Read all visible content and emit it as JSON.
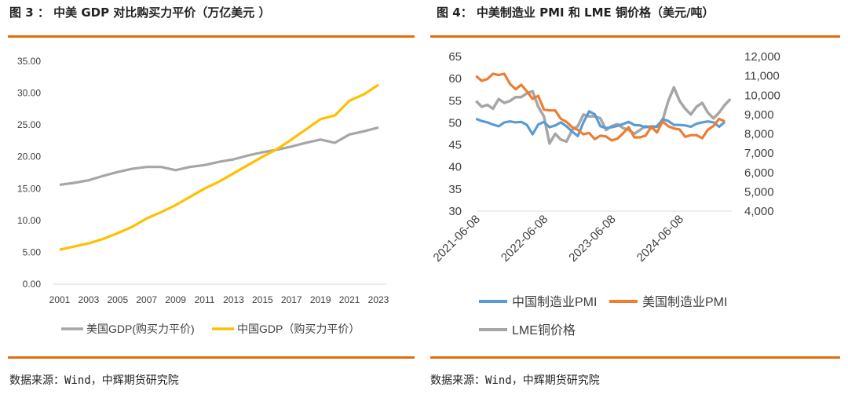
{
  "left": {
    "title": "图 3 ： 中美 GDP 对比购买力平价（万亿美元 ）",
    "source": "数据来源：Wind，中辉期货研究院"
  },
  "right": {
    "title": "图 4： 中美制造业 PMI 和 LME 铜价格（美元/吨）",
    "source": "数据来源：Wind，中辉期货研究院"
  },
  "colors": {
    "accent": "#E46C0A",
    "gray": "#A6A6A6",
    "yellow": "#FFC000",
    "blue": "#5B9BD5",
    "orange": "#ED7D31"
  },
  "chart_data": [
    {
      "type": "line",
      "title": "",
      "x": [
        2001,
        2002,
        2003,
        2004,
        2005,
        2006,
        2007,
        2008,
        2009,
        2010,
        2011,
        2012,
        2013,
        2014,
        2015,
        2016,
        2017,
        2018,
        2019,
        2020,
        2021,
        2022,
        2023
      ],
      "xticks": [
        "2001",
        "2003",
        "2005",
        "2007",
        "2009",
        "2011",
        "2013",
        "2015",
        "2017",
        "2019",
        "2021",
        "2023"
      ],
      "yticks": [
        "0.00",
        "5.00",
        "10.00",
        "15.00",
        "20.00",
        "25.00",
        "30.00",
        "35.00"
      ],
      "ylim": [
        0,
        35
      ],
      "grid": false,
      "legend": "bottom",
      "series": [
        {
          "name": "美国GDP(购买力平价)",
          "color": "#A6A6A6",
          "values": [
            15.6,
            15.9,
            16.3,
            17.0,
            17.6,
            18.1,
            18.4,
            18.4,
            17.9,
            18.4,
            18.7,
            19.2,
            19.6,
            20.2,
            20.7,
            21.1,
            21.6,
            22.2,
            22.7,
            22.2,
            23.5,
            24.0,
            24.6
          ]
        },
        {
          "name": "中国GDP（购买力平价）",
          "color": "#FFC000",
          "values": [
            5.4,
            5.9,
            6.4,
            7.1,
            8.0,
            9.0,
            10.3,
            11.3,
            12.4,
            13.7,
            15.0,
            16.1,
            17.4,
            18.7,
            20.0,
            21.2,
            22.7,
            24.3,
            25.9,
            26.5,
            28.8,
            29.8,
            31.3
          ]
        }
      ]
    },
    {
      "type": "line",
      "title": "",
      "xticks": [
        "2021-06-08",
        "2022-06-08",
        "2023-06-08",
        "2024-06-08"
      ],
      "x_start": "2021-06-08",
      "x_end": "2025-03-08",
      "y_left_ticks": [
        "30",
        "35",
        "40",
        "45",
        "50",
        "55",
        "60",
        "65"
      ],
      "ylim_left": [
        30,
        65
      ],
      "y_right_ticks": [
        "4,000",
        "5,000",
        "6,000",
        "7,000",
        "8,000",
        "9,000",
        "10,000",
        "11,000",
        "12,000"
      ],
      "ylim_right": [
        4000,
        12000
      ],
      "grid": false,
      "legend": "bottom",
      "series": [
        {
          "name": "中国制造业PMI",
          "axis": "left",
          "color": "#5B9BD5",
          "dates": [
            "2021-06",
            "2021-07",
            "2021-08",
            "2021-09",
            "2021-10",
            "2021-11",
            "2021-12",
            "2022-01",
            "2022-02",
            "2022-03",
            "2022-04",
            "2022-05",
            "2022-06",
            "2022-07",
            "2022-08",
            "2022-09",
            "2022-10",
            "2022-11",
            "2022-12",
            "2023-01",
            "2023-02",
            "2023-03",
            "2023-04",
            "2023-05",
            "2023-06",
            "2023-07",
            "2023-08",
            "2023-09",
            "2023-10",
            "2023-11",
            "2023-12",
            "2024-01",
            "2024-02",
            "2024-03",
            "2024-04",
            "2024-05",
            "2024-06",
            "2024-07",
            "2024-08",
            "2024-09",
            "2024-10",
            "2024-11",
            "2024-12",
            "2025-01",
            "2025-02"
          ],
          "values": [
            50.9,
            50.4,
            50.1,
            49.6,
            49.2,
            50.1,
            50.3,
            50.1,
            50.2,
            49.5,
            47.4,
            49.6,
            50.2,
            49.0,
            49.4,
            50.1,
            49.2,
            48.0,
            47.0,
            50.1,
            52.6,
            51.9,
            49.2,
            48.8,
            49.0,
            49.3,
            49.7,
            50.2,
            49.5,
            49.4,
            49.0,
            49.2,
            49.1,
            50.8,
            50.4,
            49.5,
            49.5,
            49.4,
            49.1,
            49.8,
            50.1,
            50.3,
            50.1,
            49.1,
            50.2
          ]
        },
        {
          "name": "美国制造业PMI",
          "axis": "left",
          "color": "#ED7D31",
          "dates": [
            "2021-06",
            "2021-07",
            "2021-08",
            "2021-09",
            "2021-10",
            "2021-11",
            "2021-12",
            "2022-01",
            "2022-02",
            "2022-03",
            "2022-04",
            "2022-05",
            "2022-06",
            "2022-07",
            "2022-08",
            "2022-09",
            "2022-10",
            "2022-11",
            "2022-12",
            "2023-01",
            "2023-02",
            "2023-03",
            "2023-04",
            "2023-05",
            "2023-06",
            "2023-07",
            "2023-08",
            "2023-09",
            "2023-10",
            "2023-11",
            "2023-12",
            "2024-01",
            "2024-02",
            "2024-03",
            "2024-04",
            "2024-05",
            "2024-06",
            "2024-07",
            "2024-08",
            "2024-09",
            "2024-10",
            "2024-11",
            "2024-12",
            "2025-01",
            "2025-02"
          ],
          "values": [
            60.6,
            59.5,
            59.9,
            61.1,
            60.8,
            61.1,
            58.8,
            57.6,
            58.6,
            57.1,
            55.4,
            56.1,
            53.0,
            52.8,
            52.8,
            50.9,
            50.2,
            49.0,
            48.4,
            47.4,
            47.7,
            46.3,
            47.1,
            46.9,
            46.0,
            46.4,
            47.6,
            49.0,
            46.7,
            46.7,
            47.1,
            49.1,
            47.8,
            50.3,
            49.2,
            48.7,
            48.5,
            46.8,
            47.2,
            47.2,
            46.5,
            48.4,
            49.3,
            50.9,
            50.3
          ]
        },
        {
          "name": "LME铜价格",
          "axis": "right",
          "color": "#A6A6A6",
          "dates": [
            "2021-06",
            "2021-07",
            "2021-08",
            "2021-09",
            "2021-10",
            "2021-11",
            "2021-12",
            "2022-01",
            "2022-02",
            "2022-03",
            "2022-04",
            "2022-05",
            "2022-06",
            "2022-07",
            "2022-08",
            "2022-09",
            "2022-10",
            "2022-11",
            "2022-12",
            "2023-01",
            "2023-02",
            "2023-03",
            "2023-04",
            "2023-05",
            "2023-06",
            "2023-07",
            "2023-08",
            "2023-09",
            "2023-10",
            "2023-11",
            "2023-12",
            "2024-01",
            "2024-02",
            "2024-03",
            "2024-04",
            "2024-05",
            "2024-06",
            "2024-07",
            "2024-08",
            "2024-09",
            "2024-10",
            "2024-11",
            "2024-12",
            "2025-01",
            "2025-02",
            "2025-03"
          ],
          "values": [
            9700,
            9400,
            9500,
            9300,
            9800,
            9600,
            9700,
            9900,
            9900,
            10100,
            10200,
            9400,
            8900,
            7500,
            8000,
            7700,
            7600,
            8200,
            8400,
            9000,
            8900,
            8900,
            8800,
            8200,
            8400,
            8500,
            8300,
            8200,
            8000,
            8200,
            8400,
            8300,
            8400,
            8700,
            9700,
            10400,
            9700,
            9300,
            9000,
            9400,
            9600,
            9100,
            8800,
            9100,
            9500,
            9800
          ]
        }
      ]
    }
  ],
  "legend": {
    "left": [
      "美国GDP(购买力平价)",
      "中国GDP（购买力平价）"
    ],
    "right": [
      "中国制造业PMI",
      "美国制造业PMI",
      "LME铜价格"
    ]
  }
}
